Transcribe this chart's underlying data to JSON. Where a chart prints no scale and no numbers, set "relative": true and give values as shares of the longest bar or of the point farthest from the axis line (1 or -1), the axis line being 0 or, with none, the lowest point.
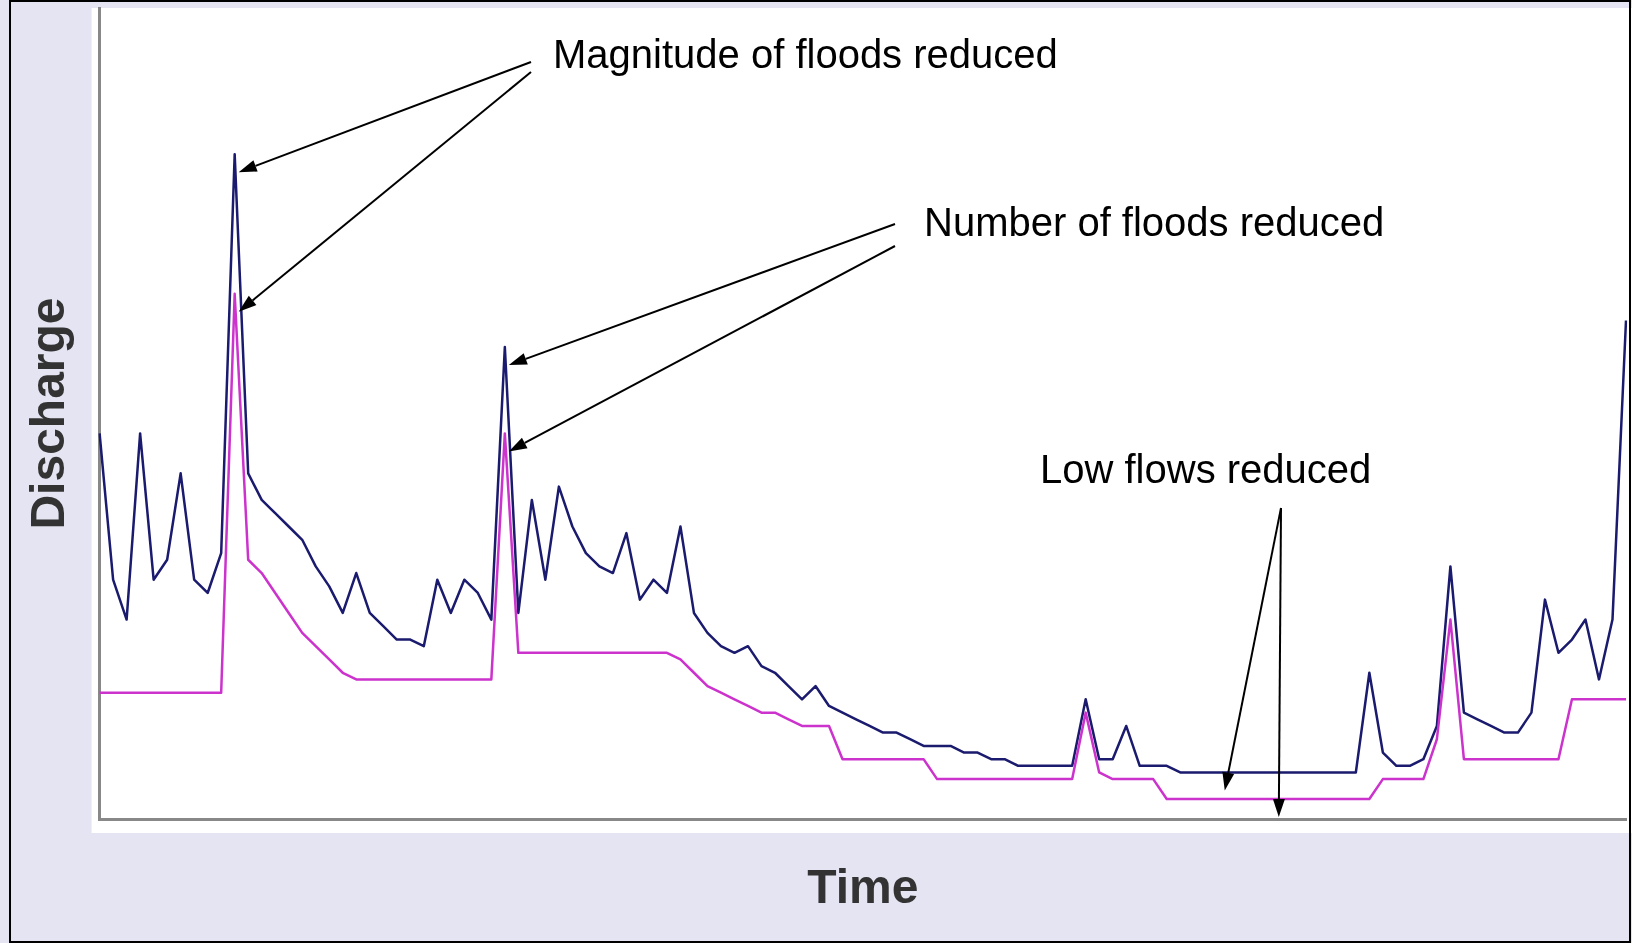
{
  "chart_data": {
    "type": "line",
    "relative": true,
    "xlabel": "Time",
    "ylabel": "Discharge",
    "grid": false,
    "legend": false,
    "marker": "none",
    "line_style": "solid",
    "categories": [
      null,
      null,
      null,
      null,
      null,
      null,
      null,
      null,
      null,
      null,
      null,
      null,
      null,
      null,
      null,
      null,
      null,
      null,
      null,
      null,
      null,
      null,
      null,
      null,
      null,
      null,
      null,
      null,
      null,
      null,
      null,
      null,
      null,
      null,
      null,
      null,
      null,
      null,
      null,
      null,
      null,
      null,
      null,
      null,
      null,
      null,
      null,
      null,
      null,
      null,
      null,
      null,
      null,
      null,
      null,
      null,
      null,
      null,
      null,
      null,
      null,
      null,
      null,
      null,
      null,
      null,
      null,
      null,
      null,
      null,
      null,
      null,
      null,
      null,
      null,
      null,
      null,
      null,
      null,
      null,
      null,
      null,
      null,
      null,
      null,
      null,
      null,
      null,
      null,
      null,
      null,
      null,
      null,
      null,
      null,
      null,
      null,
      null,
      null,
      null,
      null,
      null,
      null,
      null,
      null,
      null,
      null,
      null,
      null,
      null,
      null,
      null,
      null,
      null
    ],
    "series": [
      {
        "color": "#cc33cc",
        "values": [
          0.19,
          0.19,
          0.19,
          0.19,
          0.19,
          0.19,
          0.19,
          0.19,
          0.19,
          0.19,
          0.79,
          0.39,
          0.37,
          0.34,
          0.31,
          0.28,
          0.26,
          0.24,
          0.22,
          0.21,
          0.21,
          0.21,
          0.21,
          0.21,
          0.21,
          0.21,
          0.21,
          0.21,
          0.21,
          0.21,
          0.58,
          0.25,
          0.25,
          0.25,
          0.25,
          0.25,
          0.25,
          0.25,
          0.25,
          0.25,
          0.25,
          0.25,
          0.25,
          0.24,
          0.22,
          0.2,
          0.19,
          0.18,
          0.17,
          0.16,
          0.16,
          0.15,
          0.14,
          0.14,
          0.14,
          0.09,
          0.09,
          0.09,
          0.09,
          0.09,
          0.09,
          0.09,
          0.06,
          0.06,
          0.06,
          0.06,
          0.06,
          0.06,
          0.06,
          0.06,
          0.06,
          0.06,
          0.06,
          0.16,
          0.07,
          0.06,
          0.06,
          0.06,
          0.06,
          0.03,
          0.03,
          0.03,
          0.03,
          0.03,
          0.03,
          0.03,
          0.03,
          0.03,
          0.03,
          0.03,
          0.03,
          0.03,
          0.03,
          0.03,
          0.03,
          0.06,
          0.06,
          0.06,
          0.06,
          0.12,
          0.3,
          0.09,
          0.09,
          0.09,
          0.09,
          0.09,
          0.09,
          0.09,
          0.09,
          0.18,
          0.18,
          0.18,
          0.18,
          0.18
        ]
      },
      {
        "color": "#1a1a6e",
        "values": [
          0.58,
          0.36,
          0.3,
          0.58,
          0.36,
          0.39,
          0.52,
          0.36,
          0.34,
          0.4,
          1,
          0.52,
          0.48,
          0.46,
          0.44,
          0.42,
          0.38,
          0.35,
          0.31,
          0.37,
          0.31,
          0.29,
          0.27,
          0.27,
          0.26,
          0.36,
          0.31,
          0.36,
          0.34,
          0.3,
          0.71,
          0.31,
          0.48,
          0.36,
          0.5,
          0.44,
          0.4,
          0.38,
          0.37,
          0.43,
          0.33,
          0.36,
          0.34,
          0.44,
          0.31,
          0.28,
          0.26,
          0.25,
          0.26,
          0.23,
          0.22,
          0.2,
          0.18,
          0.2,
          0.17,
          0.16,
          0.15,
          0.14,
          0.13,
          0.13,
          0.12,
          0.11,
          0.11,
          0.11,
          0.1,
          0.1,
          0.09,
          0.09,
          0.08,
          0.08,
          0.08,
          0.08,
          0.08,
          0.18,
          0.09,
          0.09,
          0.14,
          0.08,
          0.08,
          0.08,
          0.07,
          0.07,
          0.07,
          0.07,
          0.07,
          0.07,
          0.07,
          0.07,
          0.07,
          0.07,
          0.07,
          0.07,
          0.07,
          0.07,
          0.22,
          0.1,
          0.08,
          0.08,
          0.09,
          0.14,
          0.38,
          0.16,
          0.15,
          0.14,
          0.13,
          0.13,
          0.16,
          0.33,
          0.25,
          0.27,
          0.3,
          0.21,
          0.3,
          0.75
        ]
      }
    ],
    "annotations": [
      "Magnitude of floods reduced",
      "Number of floods reduced",
      "Low flows reduced"
    ]
  }
}
